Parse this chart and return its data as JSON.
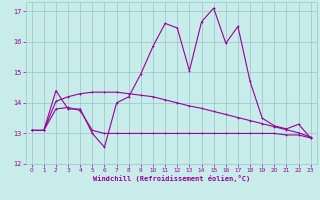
{
  "xlabel": "Windchill (Refroidissement éolien,°C)",
  "bg_color": "#c8ecea",
  "grid_color": "#9ecece",
  "line_color": "#990099",
  "xlim": [
    -0.5,
    23.5
  ],
  "ylim": [
    12,
    17.3
  ],
  "yticks": [
    12,
    13,
    14,
    15,
    16,
    17
  ],
  "xticks": [
    0,
    1,
    2,
    3,
    4,
    5,
    6,
    7,
    8,
    9,
    10,
    11,
    12,
    13,
    14,
    15,
    16,
    17,
    18,
    19,
    20,
    21,
    22,
    23
  ],
  "series1_x": [
    0,
    1,
    2,
    3,
    4,
    5,
    6,
    7,
    8,
    9,
    10,
    11,
    12,
    13,
    14,
    15,
    16,
    17,
    18,
    19,
    20,
    21,
    22,
    23
  ],
  "series1_y": [
    13.1,
    13.1,
    14.4,
    13.8,
    13.8,
    13.0,
    12.55,
    14.0,
    14.2,
    14.95,
    15.85,
    16.6,
    16.45,
    15.05,
    16.65,
    17.1,
    15.95,
    16.5,
    14.7,
    13.5,
    13.25,
    13.15,
    13.3,
    12.85
  ],
  "series2_x": [
    0,
    1,
    2,
    3,
    4,
    5,
    6,
    7,
    8,
    9,
    10,
    11,
    12,
    13,
    14,
    15,
    16,
    17,
    18,
    19,
    20,
    21,
    22,
    23
  ],
  "series2_y": [
    13.1,
    13.1,
    13.8,
    13.85,
    13.75,
    13.1,
    13.0,
    13.0,
    13.0,
    13.0,
    13.0,
    13.0,
    13.0,
    13.0,
    13.0,
    13.0,
    13.0,
    13.0,
    13.0,
    13.0,
    13.0,
    12.95,
    12.95,
    12.85
  ],
  "series3_x": [
    0,
    1,
    2,
    3,
    4,
    5,
    6,
    7,
    8,
    9,
    10,
    11,
    12,
    13,
    14,
    15,
    16,
    17,
    18,
    19,
    20,
    21,
    22,
    23
  ],
  "series3_y": [
    13.1,
    13.1,
    14.05,
    14.2,
    14.3,
    14.35,
    14.35,
    14.35,
    14.3,
    14.25,
    14.2,
    14.1,
    14.0,
    13.9,
    13.82,
    13.72,
    13.62,
    13.52,
    13.42,
    13.32,
    13.22,
    13.12,
    13.02,
    12.88
  ]
}
